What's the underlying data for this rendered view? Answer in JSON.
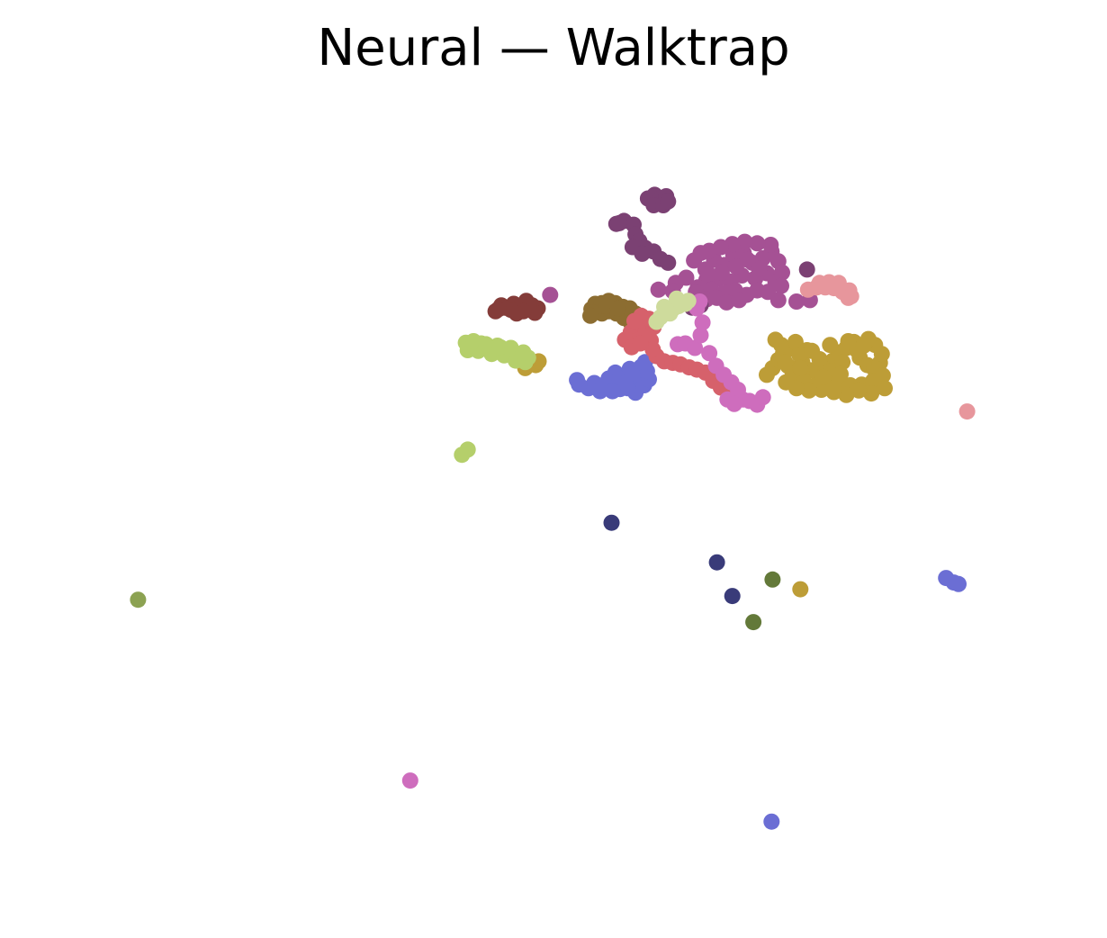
{
  "chart_data": {
    "type": "scatter",
    "title": "Neural — Walktrap",
    "xlabel": "",
    "ylabel": "",
    "axes_visible": false,
    "grid": false,
    "legend": "none",
    "x_range": [
      0,
      100
    ],
    "y_range": [
      0,
      100
    ],
    "series": [
      {
        "color": "#6b6ed4",
        "points": [
          [
            53.7,
            64.9
          ],
          [
            54.9,
            64.5
          ],
          [
            56.1,
            65.0
          ],
          [
            57.2,
            66.0
          ],
          [
            58.3,
            65.4
          ],
          [
            59.0,
            66.5
          ],
          [
            55.8,
            66.2
          ],
          [
            57.0,
            64.8
          ],
          [
            58.6,
            64.3
          ],
          [
            59.5,
            65.3
          ],
          [
            56.5,
            67.0
          ],
          [
            54.3,
            65.6
          ],
          [
            52.7,
            65.4
          ],
          [
            52.5,
            66.0
          ],
          [
            58.0,
            67.5
          ],
          [
            59.2,
            67.8
          ],
          [
            60.0,
            66.1
          ],
          [
            59.8,
            67.2
          ],
          [
            55.2,
            65.3
          ],
          [
            56.9,
            66.2
          ],
          [
            57.8,
            64.9
          ],
          [
            58.3,
            66.7
          ],
          [
            59.6,
            68.4
          ],
          [
            57.5,
            65.6
          ],
          [
            56.2,
            64.5
          ],
          [
            91.0,
            39.5
          ],
          [
            91.8,
            38.9
          ],
          [
            92.3,
            38.7
          ],
          [
            72.8,
            6.9
          ]
        ]
      },
      {
        "color": "#bd9d37",
        "points": [
          [
            72.9,
            67.6
          ],
          [
            73.5,
            68.7
          ],
          [
            74.0,
            69.6
          ],
          [
            74.8,
            70.2
          ],
          [
            75.3,
            71.1
          ],
          [
            76.0,
            68.4
          ],
          [
            76.9,
            67.3
          ],
          [
            77.6,
            66.9
          ],
          [
            78.4,
            67.7
          ],
          [
            79.2,
            68.6
          ],
          [
            79.8,
            69.7
          ],
          [
            80.6,
            70.3
          ],
          [
            81.4,
            71.1
          ],
          [
            82.0,
            69.0
          ],
          [
            82.8,
            68.0
          ],
          [
            83.5,
            67.5
          ],
          [
            84.1,
            68.3
          ],
          [
            84.3,
            69.5
          ],
          [
            83.6,
            70.7
          ],
          [
            82.9,
            71.5
          ],
          [
            81.7,
            70.0
          ],
          [
            80.2,
            68.4
          ],
          [
            79.0,
            67.2
          ],
          [
            77.8,
            68.8
          ],
          [
            76.5,
            70.0
          ],
          [
            75.7,
            69.4
          ],
          [
            74.5,
            67.9
          ],
          [
            73.8,
            70.7
          ],
          [
            73.2,
            71.4
          ],
          [
            75.0,
            66.9
          ],
          [
            76.2,
            65.8
          ],
          [
            77.4,
            65.2
          ],
          [
            78.6,
            65.6
          ],
          [
            79.8,
            65.5
          ],
          [
            81.0,
            65.3
          ],
          [
            82.2,
            65.4
          ],
          [
            83.4,
            65.9
          ],
          [
            84.4,
            66.6
          ],
          [
            84.6,
            64.9
          ],
          [
            83.2,
            64.2
          ],
          [
            81.9,
            64.6
          ],
          [
            80.6,
            64.0
          ],
          [
            79.3,
            64.4
          ],
          [
            78.0,
            64.7
          ],
          [
            76.7,
            64.6
          ],
          [
            75.4,
            64.9
          ],
          [
            74.3,
            65.7
          ],
          [
            72.3,
            66.7
          ],
          [
            77.0,
            69.9
          ],
          [
            78.9,
            70.7
          ],
          [
            80.8,
            71.2
          ],
          [
            82.4,
            70.6
          ],
          [
            80.0,
            66.8
          ],
          [
            78.2,
            66.4
          ],
          [
            75.8,
            67.6
          ],
          [
            74.2,
            68.4
          ],
          [
            47.1,
            67.6
          ],
          [
            48.2,
            68.0
          ],
          [
            48.5,
            68.5
          ],
          [
            75.8,
            38.0
          ]
        ]
      },
      {
        "color": "#b5cf6b",
        "points": [
          [
            40.9,
            71.0
          ],
          [
            41.8,
            70.5
          ],
          [
            42.5,
            70.9
          ],
          [
            43.3,
            70.2
          ],
          [
            44.2,
            70.6
          ],
          [
            45.0,
            69.9
          ],
          [
            45.9,
            69.5
          ],
          [
            46.7,
            69.3
          ],
          [
            47.4,
            69.0
          ],
          [
            41.1,
            70.0
          ],
          [
            42.2,
            69.9
          ],
          [
            43.6,
            69.5
          ],
          [
            44.9,
            69.3
          ],
          [
            46.1,
            68.6
          ],
          [
            47.1,
            68.4
          ],
          [
            41.7,
            71.2
          ],
          [
            43.0,
            70.8
          ],
          [
            44.5,
            70.4
          ],
          [
            45.6,
            70.3
          ],
          [
            46.9,
            69.7
          ],
          [
            41.1,
            56.7
          ],
          [
            40.5,
            56.0
          ]
        ]
      },
      {
        "color": "#a55194",
        "points": [
          [
            64.7,
            82.0
          ],
          [
            65.9,
            80.8
          ],
          [
            66.8,
            82.1
          ],
          [
            67.9,
            81.4
          ],
          [
            68.8,
            82.8
          ],
          [
            69.9,
            83.0
          ],
          [
            70.8,
            81.7
          ],
          [
            71.9,
            82.3
          ],
          [
            72.8,
            83.2
          ],
          [
            73.5,
            81.9
          ],
          [
            72.3,
            80.3
          ],
          [
            71.1,
            79.6
          ],
          [
            69.7,
            80.0
          ],
          [
            68.5,
            79.2
          ],
          [
            67.2,
            79.6
          ],
          [
            66.0,
            79.4
          ],
          [
            65.1,
            78.4
          ],
          [
            66.5,
            78.1
          ],
          [
            67.8,
            77.7
          ],
          [
            69.0,
            78.0
          ],
          [
            70.2,
            77.4
          ],
          [
            71.3,
            78.0
          ],
          [
            72.4,
            77.8
          ],
          [
            73.2,
            79.1
          ],
          [
            73.9,
            80.4
          ],
          [
            72.7,
            84.1
          ],
          [
            71.3,
            84.3
          ],
          [
            70.0,
            84.5
          ],
          [
            68.7,
            84.2
          ],
          [
            67.5,
            83.8
          ],
          [
            66.3,
            83.3
          ],
          [
            65.4,
            83.0
          ],
          [
            73.8,
            78.6
          ],
          [
            71.5,
            80.9
          ],
          [
            70.3,
            82.1
          ],
          [
            69.1,
            81.2
          ],
          [
            67.6,
            80.4
          ],
          [
            66.2,
            80.2
          ],
          [
            63.9,
            79.7
          ],
          [
            62.8,
            79.0
          ],
          [
            64.9,
            77.8
          ],
          [
            66.0,
            76.8
          ],
          [
            67.1,
            77.0
          ],
          [
            68.1,
            76.4
          ],
          [
            69.4,
            76.7
          ],
          [
            61.0,
            78.1
          ],
          [
            62.5,
            77.9
          ],
          [
            73.5,
            76.7
          ],
          [
            75.4,
            76.5
          ],
          [
            76.8,
            76.7
          ],
          [
            49.7,
            77.4
          ]
        ]
      },
      {
        "color": "#843c39",
        "points": [
          [
            44.0,
            75.2
          ],
          [
            44.6,
            76.0
          ],
          [
            45.3,
            75.7
          ],
          [
            45.9,
            76.2
          ],
          [
            46.6,
            75.8
          ],
          [
            47.2,
            76.6
          ],
          [
            47.8,
            76.0
          ],
          [
            48.4,
            75.6
          ],
          [
            48.1,
            75.0
          ],
          [
            47.5,
            75.8
          ],
          [
            46.9,
            75.2
          ],
          [
            46.2,
            74.9
          ],
          [
            45.6,
            75.4
          ],
          [
            44.9,
            75.7
          ],
          [
            44.3,
            75.5
          ]
        ]
      },
      {
        "color": "#7b4173",
        "points": [
          [
            59.9,
            90.3
          ],
          [
            60.6,
            90.8
          ],
          [
            61.2,
            90.3
          ],
          [
            61.8,
            90.6
          ],
          [
            60.5,
            89.4
          ],
          [
            61.5,
            89.4
          ],
          [
            62.0,
            89.9
          ],
          [
            56.6,
            86.9
          ],
          [
            57.4,
            87.3
          ],
          [
            58.4,
            86.8
          ],
          [
            58.6,
            85.5
          ],
          [
            59.0,
            84.6
          ],
          [
            59.6,
            83.7
          ],
          [
            60.5,
            83.2
          ],
          [
            61.2,
            82.2
          ],
          [
            62.0,
            81.7
          ],
          [
            56.9,
            87.0
          ],
          [
            58.3,
            83.8
          ],
          [
            59.3,
            82.9
          ],
          [
            63.4,
            76.2
          ],
          [
            64.5,
            75.7
          ],
          [
            65.4,
            76.0
          ],
          [
            76.5,
            80.8
          ]
        ]
      },
      {
        "color": "#e7969c",
        "points": [
          [
            76.6,
            78.1
          ],
          [
            77.5,
            78.4
          ],
          [
            78.4,
            78.4
          ],
          [
            79.3,
            78.3
          ],
          [
            80.2,
            77.8
          ],
          [
            81.1,
            77.2
          ],
          [
            79.8,
            79.0
          ],
          [
            78.8,
            79.1
          ],
          [
            77.8,
            79.0
          ],
          [
            80.9,
            78.0
          ],
          [
            80.8,
            77.0
          ],
          [
            93.2,
            61.8
          ]
        ]
      },
      {
        "color": "#8c6d31",
        "points": [
          [
            54.0,
            75.5
          ],
          [
            54.4,
            76.2
          ],
          [
            55.1,
            76.3
          ],
          [
            55.8,
            76.6
          ],
          [
            56.5,
            76.3
          ],
          [
            57.3,
            75.8
          ],
          [
            58.0,
            75.6
          ],
          [
            58.6,
            74.9
          ],
          [
            58.8,
            74.0
          ],
          [
            58.1,
            73.7
          ],
          [
            57.4,
            74.3
          ],
          [
            56.6,
            74.9
          ],
          [
            55.8,
            75.2
          ],
          [
            55.1,
            74.9
          ],
          [
            54.2,
            75.0
          ],
          [
            55.5,
            75.9
          ],
          [
            56.8,
            75.6
          ],
          [
            58.4,
            75.0
          ],
          [
            53.9,
            74.6
          ]
        ]
      },
      {
        "color": "#d6616b",
        "points": [
          [
            58.1,
            72.4
          ],
          [
            58.7,
            73.2
          ],
          [
            59.1,
            71.5
          ],
          [
            59.7,
            72.6
          ],
          [
            60.2,
            71.3
          ],
          [
            60.5,
            73.1
          ],
          [
            60.0,
            74.2
          ],
          [
            59.2,
            74.6
          ],
          [
            58.5,
            73.9
          ],
          [
            57.5,
            71.4
          ],
          [
            58.2,
            70.4
          ],
          [
            60.8,
            69.2
          ],
          [
            61.6,
            68.5
          ],
          [
            62.5,
            68.3
          ],
          [
            63.3,
            68.1
          ],
          [
            64.2,
            67.7
          ],
          [
            65.0,
            67.4
          ],
          [
            65.9,
            67.0
          ],
          [
            66.7,
            65.9
          ],
          [
            67.5,
            65.0
          ],
          [
            68.2,
            64.5
          ],
          [
            69.0,
            64.0
          ],
          [
            60.4,
            70.1
          ],
          [
            59.1,
            70.9
          ]
        ]
      },
      {
        "color": "#ce6dbd",
        "points": [
          [
            63.0,
            70.8
          ],
          [
            63.8,
            70.9
          ],
          [
            64.8,
            70.3
          ],
          [
            65.4,
            72.0
          ],
          [
            65.6,
            73.7
          ],
          [
            65.0,
            75.6
          ],
          [
            65.3,
            76.5
          ],
          [
            66.3,
            69.6
          ],
          [
            67.0,
            67.9
          ],
          [
            67.8,
            66.7
          ],
          [
            68.6,
            65.7
          ],
          [
            69.3,
            64.7
          ],
          [
            69.8,
            63.4
          ],
          [
            70.5,
            63.2
          ],
          [
            71.3,
            62.7
          ],
          [
            71.9,
            63.7
          ],
          [
            68.2,
            63.4
          ],
          [
            68.9,
            62.8
          ],
          [
            35.1,
            12.4
          ]
        ]
      },
      {
        "color": "#cedb9c",
        "points": [
          [
            61.2,
            74.4
          ],
          [
            61.8,
            75.1
          ],
          [
            62.5,
            75.5
          ],
          [
            63.1,
            75.9
          ],
          [
            63.8,
            76.2
          ],
          [
            64.1,
            76.6
          ],
          [
            62.9,
            76.9
          ],
          [
            61.6,
            75.8
          ],
          [
            60.8,
            73.8
          ],
          [
            62.2,
            74.9
          ]
        ]
      },
      {
        "color": "#393b79",
        "points": [
          [
            56.1,
            46.9
          ],
          [
            67.1,
            41.6
          ],
          [
            68.7,
            37.1
          ]
        ]
      },
      {
        "color": "#637939",
        "points": [
          [
            72.9,
            39.3
          ],
          [
            70.9,
            33.6
          ]
        ]
      },
      {
        "color": "#8ca252",
        "points": [
          [
            6.7,
            36.6
          ]
        ]
      }
    ]
  }
}
